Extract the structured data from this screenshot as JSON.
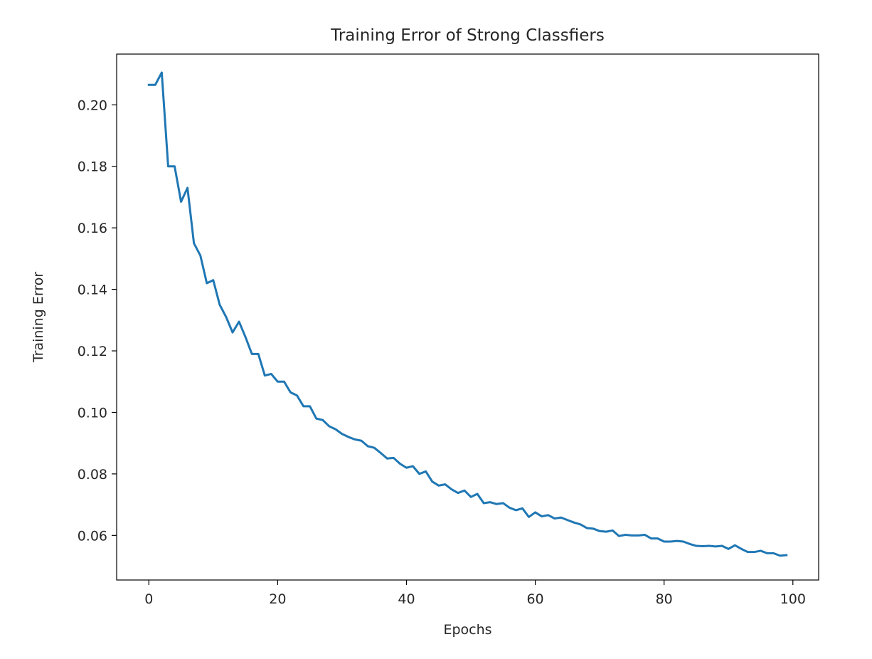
{
  "chart_data": {
    "type": "line",
    "title": "Training Error of Strong Classfiers",
    "xlabel": "Epochs",
    "ylabel": "Training Error",
    "xlim": [
      -5,
      104
    ],
    "ylim": [
      0.0455,
      0.2165
    ],
    "x_ticks": [
      0,
      20,
      40,
      60,
      80,
      100
    ],
    "x_tick_labels": [
      "0",
      "20",
      "40",
      "60",
      "80",
      "100"
    ],
    "y_ticks": [
      0.06,
      0.08,
      0.1,
      0.12,
      0.14,
      0.16,
      0.18,
      0.2
    ],
    "y_tick_labels": [
      "0.06",
      "0.08",
      "0.10",
      "0.12",
      "0.14",
      "0.16",
      "0.18",
      "0.20"
    ],
    "grid": false,
    "legend": "none",
    "series": [
      {
        "color": "#1f77b4",
        "x": [
          0,
          1,
          2,
          3,
          4,
          5,
          6,
          7,
          8,
          9,
          10,
          11,
          12,
          13,
          14,
          15,
          16,
          17,
          18,
          19,
          20,
          21,
          22,
          23,
          24,
          25,
          26,
          27,
          28,
          29,
          30,
          31,
          32,
          33,
          34,
          35,
          36,
          37,
          38,
          39,
          40,
          41,
          42,
          43,
          44,
          45,
          46,
          47,
          48,
          49,
          50,
          51,
          52,
          53,
          54,
          55,
          56,
          57,
          58,
          59,
          60,
          61,
          62,
          63,
          64,
          65,
          66,
          67,
          68,
          69,
          70,
          71,
          72,
          73,
          74,
          75,
          76,
          77,
          78,
          79,
          80,
          81,
          82,
          83,
          84,
          85,
          86,
          87,
          88,
          89,
          90,
          91,
          92,
          93,
          94,
          95,
          96,
          97,
          98,
          99
        ],
        "y": [
          0.2065,
          0.2065,
          0.2105,
          0.18,
          0.18,
          0.1685,
          0.173,
          0.155,
          0.151,
          0.142,
          0.143,
          0.135,
          0.131,
          0.126,
          0.1295,
          0.1245,
          0.119,
          0.119,
          0.112,
          0.1125,
          0.11,
          0.11,
          0.1065,
          0.1055,
          0.102,
          0.102,
          0.098,
          0.0975,
          0.0955,
          0.0945,
          0.093,
          0.092,
          0.0912,
          0.0908,
          0.089,
          0.0885,
          0.0868,
          0.085,
          0.0852,
          0.0833,
          0.082,
          0.0825,
          0.08,
          0.0808,
          0.0775,
          0.0762,
          0.0766,
          0.075,
          0.0738,
          0.0746,
          0.0725,
          0.0735,
          0.0705,
          0.0708,
          0.0702,
          0.0705,
          0.069,
          0.0682,
          0.0688,
          0.066,
          0.0675,
          0.0662,
          0.0666,
          0.0655,
          0.0658,
          0.065,
          0.0642,
          0.0636,
          0.0624,
          0.0622,
          0.0614,
          0.0612,
          0.0616,
          0.0598,
          0.0602,
          0.06,
          0.06,
          0.0602,
          0.059,
          0.059,
          0.058,
          0.058,
          0.0582,
          0.058,
          0.0572,
          0.0566,
          0.0565,
          0.0566,
          0.0564,
          0.0566,
          0.0556,
          0.0568,
          0.0556,
          0.0546,
          0.0546,
          0.055,
          0.0542,
          0.0542,
          0.0534,
          0.0536
        ]
      }
    ]
  }
}
